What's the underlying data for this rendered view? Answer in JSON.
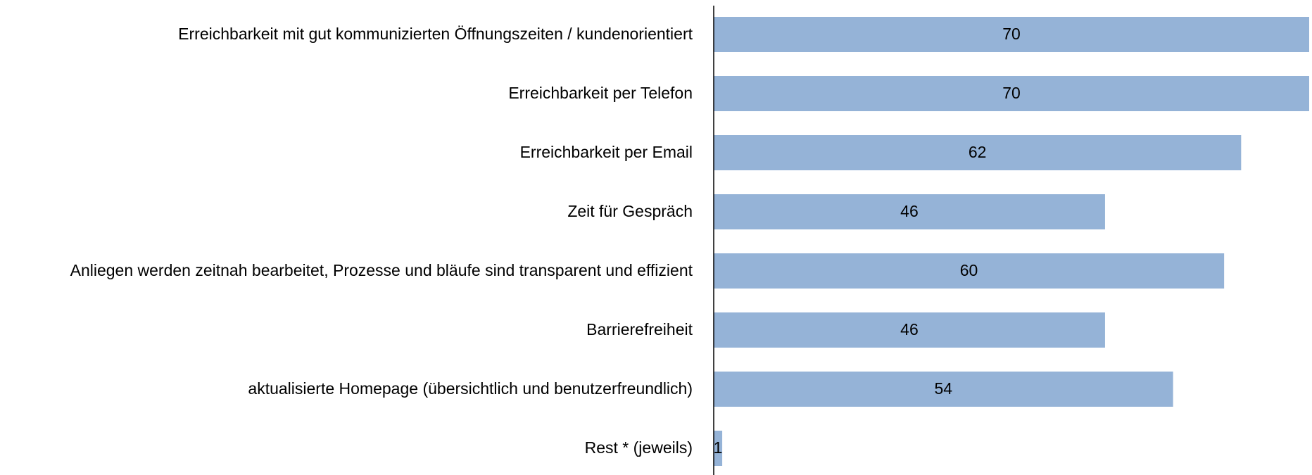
{
  "chart_data": {
    "type": "bar",
    "orientation": "horizontal",
    "categories": [
      "Erreichbarkeit mit gut kommunizierten Öffnungszeiten / kundenorientiert",
      "Erreichbarkeit per Telefon",
      "Erreichbarkeit per Email",
      "Zeit für Gespräch",
      "Anliegen werden zeitnah bearbeitet, Prozesse und bläufe sind transparent und effizient",
      "Barrierefreiheit",
      "aktualisierte Homepage (übersichtlich und benutzerfreundlich)",
      "Rest * (jeweils)"
    ],
    "values": [
      70,
      70,
      62,
      46,
      60,
      46,
      54,
      1
    ],
    "color": "#95b3d7"
  }
}
